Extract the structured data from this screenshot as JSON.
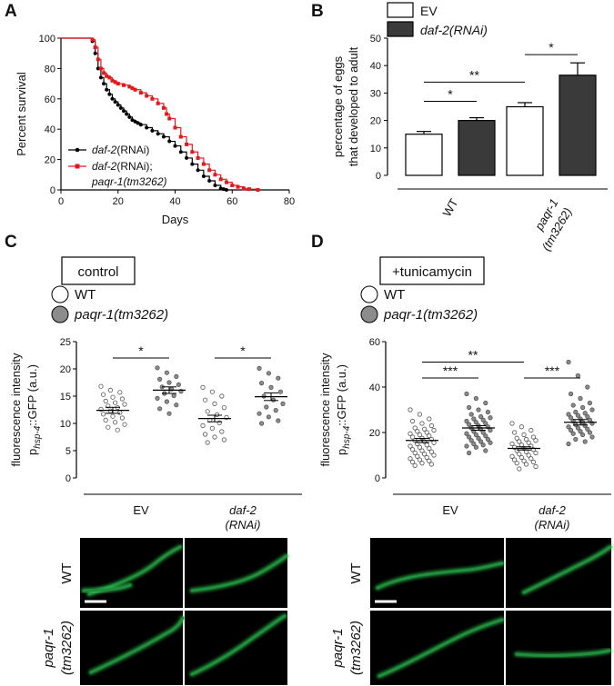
{
  "colors": {
    "red": "#e31a1c",
    "black": "#000000",
    "dark_bar": "#3a3a3a",
    "open": "#ffffff",
    "grey_dot": "#8c8c8c",
    "gfp": "#32e05a"
  },
  "panels": {
    "A": {
      "label": "A"
    },
    "B": {
      "label": "B"
    },
    "C": {
      "label": "C",
      "condition": "control"
    },
    "D": {
      "label": "D",
      "condition": "+tunicamycin"
    }
  },
  "images": {
    "row_wt": "WT",
    "row_mut_line1": "paqr-1",
    "row_mut_line2": "(tm3262)"
  },
  "chart_data": [
    {
      "panel": "A",
      "type": "line",
      "xlabel": "Days",
      "ylabel": "Percent survival",
      "xlim": [
        0,
        80
      ],
      "ylim": [
        0,
        100
      ],
      "xticks": [
        "0",
        "20",
        "40",
        "60",
        "80"
      ],
      "yticks": [
        "0",
        "20",
        "40",
        "60",
        "80",
        "100"
      ],
      "legend_position": "bottom-left",
      "series": [
        {
          "name": "daf-2(RNAi)",
          "color": "#000000",
          "marker": "circle",
          "x": [
            0,
            11,
            12,
            13,
            14,
            15,
            16,
            17,
            18,
            19,
            20,
            21,
            22,
            23,
            24,
            25,
            26,
            27,
            28,
            30,
            32,
            34,
            36,
            38,
            40,
            42,
            44,
            46,
            48,
            50,
            52,
            54,
            56,
            57,
            58
          ],
          "y": [
            100,
            98,
            90,
            80,
            74,
            70,
            66,
            63,
            60,
            58,
            56,
            54,
            52,
            50,
            48,
            46,
            45,
            44,
            43,
            41,
            39,
            37,
            35,
            32,
            29,
            25,
            21,
            17,
            13,
            9,
            6,
            3,
            1,
            0.5,
            0
          ]
        },
        {
          "name": "daf-2(RNAi); paqr-1(tm3262)",
          "color": "#e31a1c",
          "marker": "square",
          "x": [
            0,
            11,
            12,
            13,
            14,
            15,
            16,
            17,
            18,
            19,
            20,
            22,
            24,
            25,
            26,
            28,
            30,
            32,
            34,
            36,
            37,
            38,
            40,
            42,
            44,
            46,
            48,
            50,
            52,
            54,
            56,
            58,
            60,
            62,
            64,
            66,
            69
          ],
          "y": [
            100,
            99,
            94,
            86,
            80,
            77,
            75,
            74,
            72,
            71,
            70,
            69,
            68,
            67,
            66,
            64,
            62,
            60,
            57,
            54,
            50,
            47,
            41,
            35,
            30,
            25,
            21,
            17,
            13,
            10,
            7,
            5,
            3,
            2,
            1,
            0.5,
            0
          ]
        }
      ]
    },
    {
      "panel": "B",
      "type": "bar",
      "ylabel_line1": "percentage of eggs",
      "ylabel_line2": "that developed to adult",
      "ylim": [
        0,
        50
      ],
      "yticks": [
        "0",
        "10",
        "20",
        "30",
        "40",
        "50"
      ],
      "groups": [
        {
          "label_line1": "WT",
          "label_line2": ""
        },
        {
          "label_line1": "paqr-1",
          "label_line2": "(tm3262)"
        }
      ],
      "legend_position": "top-left",
      "series": [
        {
          "name": "EV",
          "values": [
            15,
            25
          ],
          "errors": [
            1,
            1.5
          ]
        },
        {
          "name": "daf-2(RNAi)",
          "values": [
            20,
            36.5
          ],
          "errors": [
            1,
            4.5
          ]
        }
      ],
      "significance": [
        {
          "text": "*",
          "from": [
            0,
            0
          ],
          "to": [
            0,
            1
          ],
          "y": 27
        },
        {
          "text": "**",
          "from": [
            0,
            0
          ],
          "to": [
            1,
            0
          ],
          "y": 34
        },
        {
          "text": "*",
          "from": [
            1,
            0
          ],
          "to": [
            1,
            1
          ],
          "y": 44
        }
      ]
    },
    {
      "panel": "C",
      "type": "scatter",
      "ylabel_line1": "fluorescence intensity",
      "ylabel_p": "p",
      "ylabel_sub": "hsp-4",
      "ylabel_rest": "::GFP (a.u.)",
      "ylim": [
        0,
        25
      ],
      "yticks": [
        "0",
        "5",
        "10",
        "15",
        "20",
        "25"
      ],
      "groups": [
        {
          "label_line1": "EV",
          "label_line2": ""
        },
        {
          "label_line1": "daf-2",
          "label_line2": "(RNAi)"
        }
      ],
      "legend": [
        "WT",
        "paqr-1(tm3262)"
      ],
      "series": [
        {
          "name": "WT",
          "group": 0,
          "mean": 12.4,
          "sem": 0.55,
          "values": [
            16.8,
            16.1,
            15.7,
            15.3,
            14.8,
            14.5,
            14.1,
            13.8,
            13.5,
            13.2,
            12.9,
            12.6,
            12.3,
            12.0,
            11.7,
            11.3,
            11.0,
            10.6,
            10.2,
            9.8,
            9.3,
            8.8
          ]
        },
        {
          "name": "paqr-1(tm3262)",
          "group": 0,
          "mean": 16.1,
          "sem": 0.6,
          "values": [
            20.2,
            19.3,
            18.6,
            18.1,
            17.5,
            17.1,
            16.7,
            16.3,
            15.9,
            15.5,
            15.1,
            14.6,
            14.0,
            13.4,
            12.7,
            11.8
          ]
        },
        {
          "name": "WT",
          "group": 1,
          "mean": 10.9,
          "sem": 0.6,
          "values": [
            16.6,
            15.8,
            15.0,
            14.3,
            13.6,
            12.9,
            12.2,
            11.6,
            11.1,
            10.6,
            10.1,
            9.6,
            9.1,
            8.5,
            8.0,
            7.5,
            7.0,
            6.5
          ]
        },
        {
          "name": "paqr-1(tm3262)",
          "group": 1,
          "mean": 14.9,
          "sem": 0.7,
          "values": [
            20.1,
            19.2,
            18.3,
            17.4,
            16.6,
            15.8,
            15.0,
            14.3,
            13.6,
            13.0,
            12.4,
            11.8,
            11.2,
            10.5,
            10.0
          ]
        }
      ],
      "significance": [
        {
          "text": "*",
          "from": [
            0,
            0
          ],
          "to": [
            0,
            1
          ],
          "y": 22
        },
        {
          "text": "*",
          "from": [
            1,
            0
          ],
          "to": [
            1,
            1
          ],
          "y": 22
        }
      ]
    },
    {
      "panel": "D",
      "type": "scatter",
      "ylabel_line1": "fluorescence intensity",
      "ylabel_p": "p",
      "ylabel_sub": "hsp-4",
      "ylabel_rest": "::GFP (a.u.)",
      "ylim": [
        0,
        60
      ],
      "yticks": [
        "0",
        "20",
        "40",
        "60"
      ],
      "groups": [
        {
          "label_line1": "EV",
          "label_line2": ""
        },
        {
          "label_line1": "daf-2",
          "label_line2": "(RNAi)"
        }
      ],
      "legend": [
        "WT",
        "paqr-1(tm3262)"
      ],
      "series": [
        {
          "name": "WT",
          "group": 0,
          "mean": 16.5,
          "sem": 0.9,
          "values": [
            30,
            28,
            26,
            25,
            24,
            23,
            22,
            21.5,
            21,
            20.5,
            20,
            19.5,
            19,
            18.5,
            18,
            17.5,
            17,
            16.5,
            16,
            15.5,
            15,
            14.5,
            14,
            13.5,
            13,
            12.5,
            12,
            11.5,
            11,
            10.5,
            10,
            9.5,
            9,
            8.5,
            8,
            7.5,
            7,
            6.5,
            6,
            5.5
          ]
        },
        {
          "name": "paqr-1(tm3262)",
          "group": 0,
          "mean": 22,
          "sem": 1.0,
          "values": [
            37,
            35,
            33,
            31,
            30,
            29,
            28,
            27,
            26.5,
            26,
            25.5,
            25,
            24.5,
            24,
            23.5,
            23,
            22.5,
            22,
            21.5,
            21,
            20.5,
            20,
            19.5,
            19,
            18.5,
            18,
            17.5,
            17,
            16.5,
            16,
            15.5,
            15,
            14.5,
            14,
            13.5,
            12,
            11
          ]
        },
        {
          "name": "WT",
          "group": 1,
          "mean": 13,
          "sem": 0.7,
          "values": [
            24,
            22.5,
            21,
            20,
            19,
            18,
            17.5,
            17,
            16.5,
            16,
            15.5,
            15,
            14.5,
            14,
            13.5,
            13,
            12.5,
            12,
            11.5,
            11,
            10.5,
            10,
            9.5,
            9,
            8.5,
            8,
            7.5,
            7,
            6.5,
            6,
            5,
            4
          ]
        },
        {
          "name": "paqr-1(tm3262)",
          "group": 1,
          "mean": 24.5,
          "sem": 1.2,
          "values": [
            51,
            45,
            40,
            37,
            35,
            33,
            32,
            31,
            30,
            29,
            28.5,
            28,
            27.5,
            27,
            26.5,
            26,
            25.5,
            25,
            24.5,
            24,
            23.5,
            23,
            22.5,
            22,
            21.5,
            21,
            20.5,
            20,
            19.5,
            19,
            18,
            17,
            16,
            15
          ]
        }
      ],
      "significance": [
        {
          "text": "***",
          "from": [
            0,
            0
          ],
          "to": [
            0,
            1
          ],
          "y": 44
        },
        {
          "text": "**",
          "from": [
            0,
            0
          ],
          "to": [
            1,
            0
          ],
          "y": 51
        },
        {
          "text": "***",
          "from": [
            1,
            0
          ],
          "to": [
            1,
            1
          ],
          "y": 44
        }
      ]
    }
  ]
}
